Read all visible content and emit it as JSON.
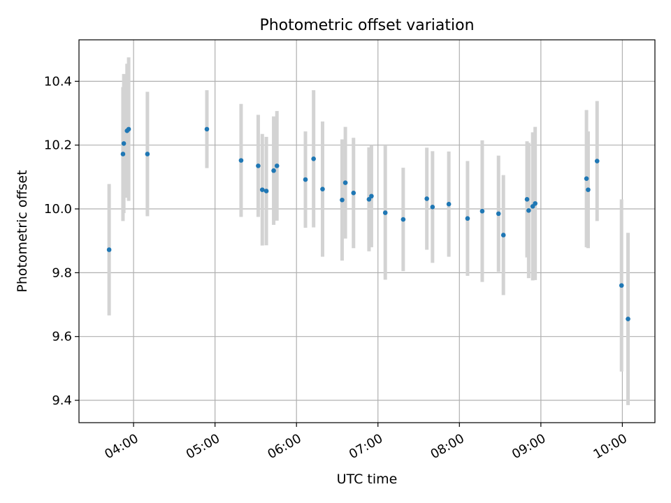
{
  "chart_data": {
    "type": "scatter",
    "title": "Photometric offset variation",
    "xlabel": "UTC time",
    "ylabel": "Photometric offset",
    "xlim": [
      3.33,
      10.4
    ],
    "ylim": [
      9.33,
      10.53
    ],
    "grid": true,
    "x_ticks": [
      {
        "value": 4,
        "label": "04:00"
      },
      {
        "value": 5,
        "label": "05:00"
      },
      {
        "value": 6,
        "label": "06:00"
      },
      {
        "value": 7,
        "label": "07:00"
      },
      {
        "value": 8,
        "label": "08:00"
      },
      {
        "value": 9,
        "label": "09:00"
      },
      {
        "value": 10,
        "label": "10:00"
      }
    ],
    "y_ticks": [
      {
        "value": 9.4,
        "label": "9.4"
      },
      {
        "value": 9.6,
        "label": "9.6"
      },
      {
        "value": 9.8,
        "label": "9.8"
      },
      {
        "value": 10.0,
        "label": "10.0"
      },
      {
        "value": 10.2,
        "label": "10.2"
      },
      {
        "value": 10.4,
        "label": "10.4"
      }
    ],
    "x_unit": "hours UTC (decimal)",
    "series": [
      {
        "name": "offset",
        "color": "#1f77b4",
        "error_color": "#d3d3d3",
        "points": [
          {
            "x": 3.7,
            "y": 9.872,
            "err": 0.206
          },
          {
            "x": 3.87,
            "y": 10.172,
            "err": 0.21
          },
          {
            "x": 3.88,
            "y": 10.205,
            "err": 0.218
          },
          {
            "x": 3.92,
            "y": 10.245,
            "err": 0.21
          },
          {
            "x": 3.94,
            "y": 10.25,
            "err": 0.225
          },
          {
            "x": 4.17,
            "y": 10.172,
            "err": 0.195
          },
          {
            "x": 4.9,
            "y": 10.25,
            "err": 0.122
          },
          {
            "x": 5.32,
            "y": 10.152,
            "err": 0.177
          },
          {
            "x": 5.53,
            "y": 10.135,
            "err": 0.16
          },
          {
            "x": 5.58,
            "y": 10.06,
            "err": 0.175
          },
          {
            "x": 5.63,
            "y": 10.056,
            "err": 0.17
          },
          {
            "x": 5.72,
            "y": 10.12,
            "err": 0.17
          },
          {
            "x": 5.76,
            "y": 10.135,
            "err": 0.172
          },
          {
            "x": 6.11,
            "y": 10.092,
            "err": 0.151
          },
          {
            "x": 6.21,
            "y": 10.157,
            "err": 0.215
          },
          {
            "x": 6.32,
            "y": 10.062,
            "err": 0.212
          },
          {
            "x": 6.56,
            "y": 10.028,
            "err": 0.19
          },
          {
            "x": 6.6,
            "y": 10.082,
            "err": 0.175
          },
          {
            "x": 6.7,
            "y": 10.05,
            "err": 0.173
          },
          {
            "x": 6.89,
            "y": 10.03,
            "err": 0.163
          },
          {
            "x": 6.92,
            "y": 10.04,
            "err": 0.16
          },
          {
            "x": 7.09,
            "y": 9.988,
            "err": 0.21
          },
          {
            "x": 7.31,
            "y": 9.967,
            "err": 0.162
          },
          {
            "x": 7.6,
            "y": 10.032,
            "err": 0.16
          },
          {
            "x": 7.67,
            "y": 10.006,
            "err": 0.175
          },
          {
            "x": 7.87,
            "y": 10.015,
            "err": 0.165
          },
          {
            "x": 8.1,
            "y": 9.97,
            "err": 0.18
          },
          {
            "x": 8.28,
            "y": 9.993,
            "err": 0.222
          },
          {
            "x": 8.48,
            "y": 9.985,
            "err": 0.182
          },
          {
            "x": 8.54,
            "y": 9.918,
            "err": 0.188
          },
          {
            "x": 8.83,
            "y": 10.03,
            "err": 0.182
          },
          {
            "x": 8.85,
            "y": 9.995,
            "err": 0.212
          },
          {
            "x": 8.9,
            "y": 10.008,
            "err": 0.232
          },
          {
            "x": 8.93,
            "y": 10.017,
            "err": 0.24
          },
          {
            "x": 9.56,
            "y": 10.095,
            "err": 0.215
          },
          {
            "x": 9.58,
            "y": 10.06,
            "err": 0.183
          },
          {
            "x": 9.69,
            "y": 10.15,
            "err": 0.188
          },
          {
            "x": 9.99,
            "y": 9.76,
            "err": 0.27
          },
          {
            "x": 10.07,
            "y": 9.655,
            "err": 0.27
          }
        ]
      }
    ]
  }
}
